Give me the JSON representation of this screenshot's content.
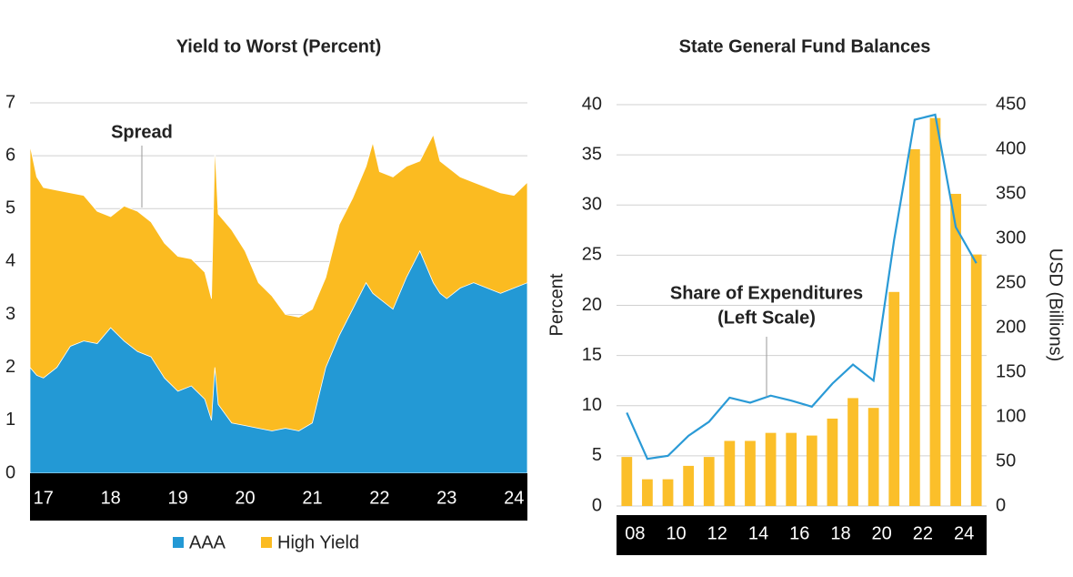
{
  "charts": [
    {
      "type": "area",
      "title": "Yield to Worst (Percent)",
      "annotation": "Spread",
      "x": [
        2016.8,
        2016.9,
        2017.0,
        2017.2,
        2017.4,
        2017.6,
        2017.8,
        2018.0,
        2018.2,
        2018.4,
        2018.6,
        2018.8,
        2019.0,
        2019.2,
        2019.4,
        2019.5,
        2019.55,
        2019.6,
        2019.8,
        2020.0,
        2020.2,
        2020.4,
        2020.6,
        2020.8,
        2021.0,
        2021.2,
        2021.4,
        2021.6,
        2021.8,
        2021.9,
        2022.0,
        2022.2,
        2022.4,
        2022.6,
        2022.8,
        2022.9,
        2023.0,
        2023.2,
        2023.4,
        2023.6,
        2023.8,
        2024.0,
        2024.2
      ],
      "series": [
        {
          "name": "High Yield",
          "color": "#fbbb21",
          "values": [
            6.2,
            5.6,
            5.4,
            5.35,
            5.3,
            5.25,
            4.95,
            4.85,
            5.05,
            4.95,
            4.75,
            4.35,
            4.1,
            4.05,
            3.8,
            3.3,
            6.2,
            4.9,
            4.6,
            4.2,
            3.6,
            3.35,
            3.0,
            2.95,
            3.1,
            3.7,
            4.7,
            5.2,
            5.8,
            6.25,
            5.7,
            5.6,
            5.8,
            5.9,
            6.4,
            5.9,
            5.8,
            5.6,
            5.5,
            5.4,
            5.3,
            5.25,
            5.5
          ]
        },
        {
          "name": "AAA",
          "color": "#2399d5",
          "values": [
            2.0,
            1.85,
            1.8,
            2.0,
            2.4,
            2.5,
            2.45,
            2.75,
            2.5,
            2.3,
            2.2,
            1.8,
            1.55,
            1.65,
            1.4,
            1.0,
            2.0,
            1.3,
            0.95,
            0.9,
            0.85,
            0.8,
            0.85,
            0.8,
            0.95,
            2.0,
            2.6,
            3.1,
            3.6,
            3.4,
            3.3,
            3.1,
            3.7,
            4.2,
            3.6,
            3.4,
            3.3,
            3.5,
            3.6,
            3.5,
            3.4,
            3.5,
            3.6
          ]
        }
      ],
      "xlim": [
        2016.8,
        2024.2
      ],
      "xticks": [
        {
          "value": 2017,
          "label": "17"
        },
        {
          "value": 2018,
          "label": "18"
        },
        {
          "value": 2019,
          "label": "19"
        },
        {
          "value": 2020,
          "label": "20"
        },
        {
          "value": 2021,
          "label": "21"
        },
        {
          "value": 2022,
          "label": "22"
        },
        {
          "value": 2023,
          "label": "23"
        },
        {
          "value": 2024,
          "label": "24"
        }
      ],
      "ylim": [
        0,
        7
      ],
      "yticks": [
        0,
        1,
        2,
        3,
        4,
        5,
        6,
        7
      ],
      "grid": true
    },
    {
      "type": "combo",
      "title": "State General Fund Balances",
      "ylabel": "Percent",
      "y2label": "USD (Billions)",
      "annotation": [
        "Share of Expenditures",
        "(Left Scale)"
      ],
      "categories": [
        "08",
        null,
        "10",
        null,
        "12",
        null,
        "14",
        null,
        "16",
        null,
        "18",
        null,
        "20",
        null,
        "22",
        null,
        "24",
        null
      ],
      "series": [
        {
          "type": "bar",
          "axis": "y2",
          "color": "#fbbf2a",
          "values": [
            55,
            30,
            30,
            45,
            55,
            73,
            73,
            82,
            82,
            79,
            98,
            121,
            110,
            240,
            400,
            435,
            350,
            282
          ]
        },
        {
          "type": "line",
          "color": "#2a9ad6",
          "values": [
            9.3,
            4.7,
            5.0,
            7.0,
            8.4,
            10.8,
            10.3,
            11.0,
            10.5,
            9.9,
            12.2,
            14.1,
            12.5,
            26.5,
            38.5,
            39.0,
            27.8,
            24.2
          ]
        }
      ],
      "ylim": [
        0,
        40
      ],
      "yticks": [
        0,
        5,
        10,
        15,
        20,
        25,
        30,
        35,
        40
      ],
      "y2lim": [
        0,
        450
      ],
      "y2ticks": [
        0,
        50,
        100,
        150,
        200,
        250,
        300,
        350,
        400,
        450
      ],
      "grid": true
    }
  ]
}
